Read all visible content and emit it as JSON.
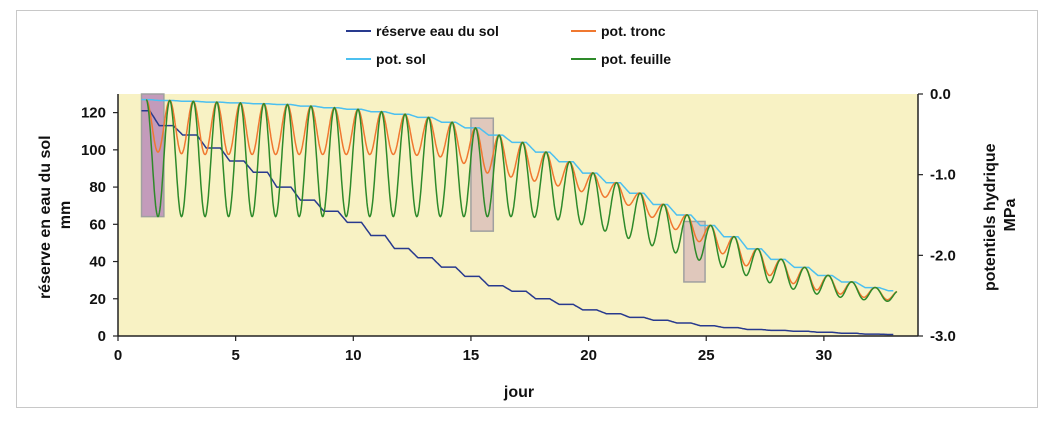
{
  "chart_data": {
    "type": "line",
    "xlabel": "jour",
    "ylabel_left": [
      "réserve en eau du sol",
      "mm"
    ],
    "ylabel_right": [
      "potentiels hydrique",
      "MPa"
    ],
    "xlim": [
      0,
      34
    ],
    "ylim_left": [
      0,
      130
    ],
    "ylim_right": [
      -3.0,
      0.0
    ],
    "xticks": [
      "0",
      "5",
      "10",
      "15",
      "20",
      "25",
      "30"
    ],
    "yticks_left": [
      "0",
      "20",
      "40",
      "60",
      "80",
      "100",
      "120"
    ],
    "yticks_right": [
      "0.0",
      "-1.0",
      "-2.0",
      "-3.0"
    ],
    "plot_background": "#f8f2c4",
    "grid": false,
    "legend_position": "top",
    "series": [
      {
        "name": "réserve eau du sol",
        "axis": "left",
        "color": "#283a8e",
        "x": [
          1,
          2,
          3,
          4,
          5,
          6,
          7,
          8,
          9,
          10,
          11,
          12,
          13,
          14,
          15,
          16,
          17,
          18,
          19,
          20,
          21,
          22,
          23,
          24,
          25,
          26,
          27,
          28,
          29,
          30,
          31,
          32,
          33
        ],
        "values": [
          121,
          113,
          108,
          101,
          94,
          88,
          80,
          73,
          67,
          61,
          54,
          47,
          42,
          37,
          32,
          27,
          24,
          20,
          17,
          14,
          12,
          10,
          8.5,
          7,
          5.5,
          4.5,
          3.5,
          3,
          2.5,
          2,
          1.5,
          1,
          0.8
        ]
      },
      {
        "name": "pot. sol",
        "axis": "right",
        "color": "#4cc0f0",
        "x": [
          1,
          2,
          3,
          4,
          5,
          6,
          7,
          8,
          9,
          10,
          11,
          12,
          13,
          14,
          15,
          16,
          17,
          18,
          19,
          20,
          21,
          22,
          23,
          24,
          25,
          26,
          27,
          28,
          29,
          30,
          31,
          32,
          33
        ],
        "values": [
          -0.07,
          -0.08,
          -0.09,
          -0.1,
          -0.11,
          -0.12,
          -0.13,
          -0.15,
          -0.17,
          -0.19,
          -0.22,
          -0.25,
          -0.29,
          -0.35,
          -0.42,
          -0.51,
          -0.6,
          -0.72,
          -0.84,
          -0.98,
          -1.1,
          -1.23,
          -1.37,
          -1.5,
          -1.63,
          -1.77,
          -1.92,
          -2.05,
          -2.15,
          -2.25,
          -2.33,
          -2.4,
          -2.44
        ]
      },
      {
        "name": "pot. tronc",
        "axis": "right",
        "color": "#f07830",
        "daily_min_day": [
          1,
          2,
          3,
          4,
          5,
          6,
          7,
          8,
          9,
          10,
          11,
          12,
          13,
          14,
          15,
          16,
          17,
          18,
          19,
          20,
          21,
          22,
          23,
          24,
          25,
          26,
          27,
          28,
          29,
          30,
          31,
          32
        ],
        "daily_min": [
          -0.72,
          -0.74,
          -0.75,
          -0.75,
          -0.75,
          -0.75,
          -0.75,
          -0.75,
          -0.75,
          -0.75,
          -0.75,
          -0.76,
          -0.78,
          -0.86,
          -0.98,
          -1.03,
          -1.08,
          -1.14,
          -1.21,
          -1.28,
          -1.38,
          -1.53,
          -1.68,
          -1.83,
          -1.98,
          -2.13,
          -2.25,
          -2.35,
          -2.43,
          -2.48,
          -2.52,
          -2.55
        ]
      },
      {
        "name": "pot. feuille",
        "axis": "right",
        "color": "#2e8a2a",
        "daily_min_day": [
          1,
          2,
          3,
          4,
          5,
          6,
          7,
          8,
          9,
          10,
          11,
          12,
          13,
          14,
          15,
          16,
          17,
          18,
          19,
          20,
          21,
          22,
          23,
          24,
          25,
          26,
          27,
          28,
          29,
          30,
          31,
          32
        ],
        "daily_min": [
          -1.52,
          -1.52,
          -1.52,
          -1.52,
          -1.52,
          -1.52,
          -1.52,
          -1.52,
          -1.52,
          -1.52,
          -1.52,
          -1.52,
          -1.52,
          -1.52,
          -1.52,
          -1.52,
          -1.53,
          -1.56,
          -1.62,
          -1.7,
          -1.79,
          -1.88,
          -1.97,
          -2.06,
          -2.15,
          -2.25,
          -2.34,
          -2.42,
          -2.48,
          -2.52,
          -2.55,
          -2.57
        ]
      }
    ],
    "highlight_boxes": [
      {
        "x_range": [
          1.0,
          1.95
        ],
        "y_range_right": [
          -1.52,
          0.0
        ],
        "color": "#b27eb8"
      },
      {
        "x_range": [
          15.0,
          15.95
        ],
        "y_range_right": [
          -1.7,
          -0.3
        ],
        "color": "#d8b9b9"
      },
      {
        "x_range": [
          24.05,
          24.95
        ],
        "y_range_right": [
          -2.33,
          -1.58
        ],
        "color": "#d8b9b9"
      }
    ]
  }
}
